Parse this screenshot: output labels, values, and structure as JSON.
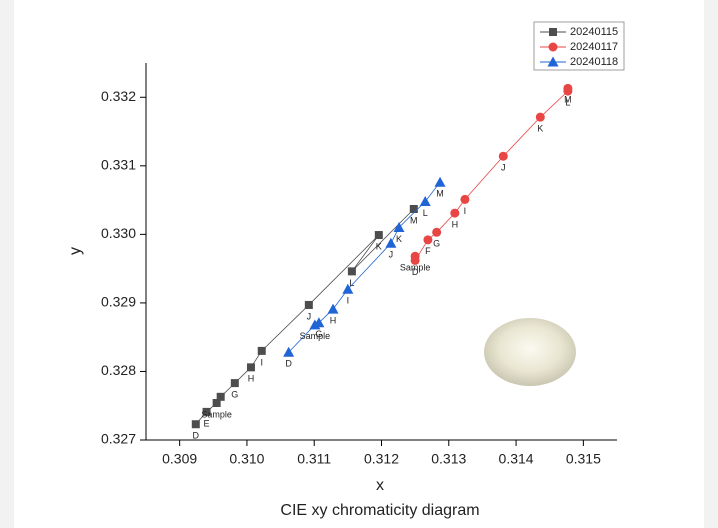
{
  "chart_data": {
    "type": "line",
    "title": "CIE xy chromaticity diagram",
    "x_label": "x",
    "y_label": "y",
    "xlim": [
      0.3085,
      0.3155
    ],
    "xticks": [
      0.309,
      {
        "value": 0.31,
        "label": "0.310"
      },
      0.311,
      0.312,
      0.313,
      0.314,
      0.315
    ],
    "ylim": [
      0.327,
      0.3325
    ],
    "yticks": [
      0.327,
      0.328,
      0.329,
      {
        "value": 0.33,
        "label": "0.330"
      },
      0.331,
      0.332
    ],
    "legend": "upper right",
    "series": [
      {
        "name": "20240115",
        "color": "#4d4d4d",
        "marker": "square",
        "x": [
          0.30924,
          0.3094,
          0.30955,
          0.30961,
          0.30982,
          0.31006,
          0.31022,
          0.31092,
          0.31196,
          0.31156,
          0.31248
        ],
        "values": [
          0.32723,
          0.32741,
          0.32754,
          0.32763,
          0.32783,
          0.32806,
          0.3283,
          0.32897,
          0.32999,
          0.32946,
          0.33037
        ],
        "labels": [
          "D",
          "E",
          "Sample",
          null,
          "G",
          "H",
          "I",
          "J",
          "K",
          "L",
          "M"
        ]
      },
      {
        "name": "20240117",
        "color": "#e84545",
        "marker": "circle",
        "x": [
          0.3125,
          0.3125,
          0.31269,
          0.31282,
          0.31309,
          0.31324,
          0.31381,
          0.31436,
          0.31477,
          0.31477
        ],
        "values": [
          0.32968,
          0.32962,
          0.32992,
          0.33003,
          0.33031,
          0.33051,
          0.33114,
          0.33171,
          0.33209,
          0.33213
        ],
        "labels": [
          "Sample",
          "D",
          "F",
          "G",
          "H",
          "I",
          "J",
          "K",
          "L",
          "M"
        ]
      },
      {
        "name": "20240118",
        "color": "#2065d6",
        "marker": "triangle",
        "x": [
          0.31062,
          0.31101,
          0.31107,
          0.31128,
          0.3115,
          0.31214,
          0.31226,
          0.31265,
          0.31287
        ],
        "values": [
          0.32828,
          0.32868,
          0.32871,
          0.32891,
          0.3292,
          0.32987,
          0.3301,
          0.33048,
          0.33076
        ],
        "labels": [
          "D",
          "Sample",
          "G",
          "H",
          "I",
          "J",
          "K",
          "L",
          "M"
        ]
      }
    ]
  }
}
